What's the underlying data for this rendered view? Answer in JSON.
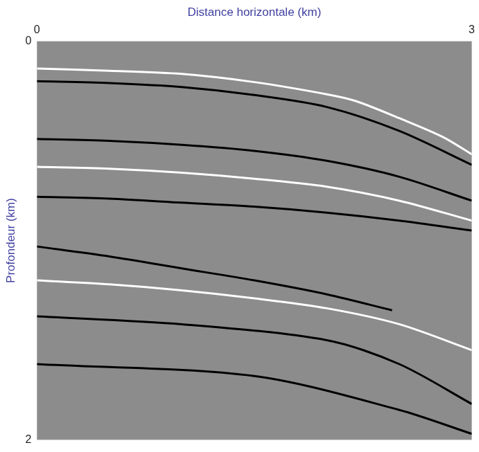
{
  "chart_data": {
    "type": "line",
    "x_label": "Distance horizontale (km)",
    "y_label": "Profondeur (km)",
    "xlim": [
      0,
      3
    ],
    "xticks": [
      0,
      3
    ],
    "ylim": [
      2,
      0
    ],
    "yticks": [
      0,
      2
    ],
    "grid": false,
    "series": [
      {
        "color": "#ffffff",
        "x": [
          0,
          0.5,
          1.0,
          1.5,
          2.0,
          2.2,
          2.5,
          2.8,
          3.0
        ],
        "values": [
          0.137,
          0.148,
          0.164,
          0.205,
          0.266,
          0.3,
          0.386,
          0.48,
          0.567
        ]
      },
      {
        "color": "#000000",
        "x": [
          0,
          0.5,
          1.0,
          1.5,
          2.0,
          2.5,
          3.0
        ],
        "values": [
          0.2,
          0.21,
          0.23,
          0.27,
          0.33,
          0.45,
          0.62
        ]
      },
      {
        "color": "#000000",
        "x": [
          0,
          0.5,
          1.0,
          1.5,
          2.0,
          2.5,
          3.0
        ],
        "values": [
          0.49,
          0.5,
          0.52,
          0.55,
          0.6,
          0.68,
          0.8
        ]
      },
      {
        "color": "#ffffff",
        "x": [
          0,
          0.5,
          1.0,
          1.5,
          2.0,
          2.5,
          3.0
        ],
        "values": [
          0.63,
          0.64,
          0.66,
          0.69,
          0.73,
          0.8,
          0.9
        ]
      },
      {
        "color": "#000000",
        "x": [
          0,
          0.5,
          1.0,
          1.5,
          2.0,
          2.5,
          3.0
        ],
        "values": [
          0.78,
          0.79,
          0.81,
          0.83,
          0.86,
          0.9,
          0.95
        ]
      },
      {
        "color": "#000000",
        "x": [
          0,
          0.5,
          1.0,
          1.5,
          2.0,
          2.45
        ],
        "values": [
          1.03,
          1.08,
          1.14,
          1.2,
          1.27,
          1.35
        ]
      },
      {
        "color": "#ffffff",
        "x": [
          0,
          0.5,
          1.0,
          1.5,
          2.0,
          2.5,
          3.0
        ],
        "values": [
          1.2,
          1.22,
          1.25,
          1.29,
          1.34,
          1.42,
          1.55
        ]
      },
      {
        "color": "#000000",
        "x": [
          0,
          1.0,
          2.0,
          2.5,
          3.0
        ],
        "values": [
          1.38,
          1.42,
          1.5,
          1.62,
          1.82
        ]
      },
      {
        "color": "#000000",
        "x": [
          0,
          1.5,
          2.5,
          3.0
        ],
        "values": [
          1.62,
          1.68,
          1.85,
          1.97
        ]
      }
    ]
  }
}
